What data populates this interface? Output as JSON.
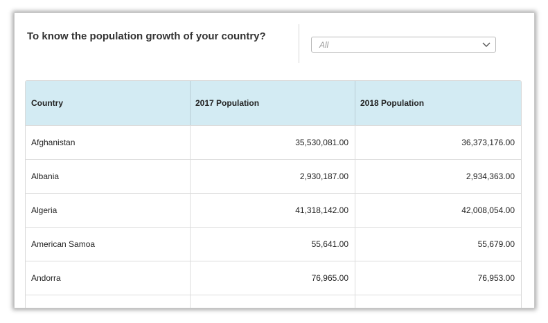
{
  "header": {
    "title": "To know the population growth of your country?"
  },
  "filter": {
    "selected": "All",
    "icon": "chevron-down-icon"
  },
  "table": {
    "columns": [
      "Country",
      "2017 Population",
      "2018 Population"
    ],
    "rows": [
      [
        "Afghanistan",
        "35,530,081.00",
        "36,373,176.00"
      ],
      [
        "Albania",
        "2,930,187.00",
        "2,934,363.00"
      ],
      [
        "Algeria",
        "41,318,142.00",
        "42,008,054.00"
      ],
      [
        "American Samoa",
        "55,641.00",
        "55,679.00"
      ],
      [
        "Andorra",
        "76,965.00",
        "76,953.00"
      ]
    ]
  },
  "colors": {
    "header_background": "#d3ebf3",
    "heading_text": "#333333"
  }
}
